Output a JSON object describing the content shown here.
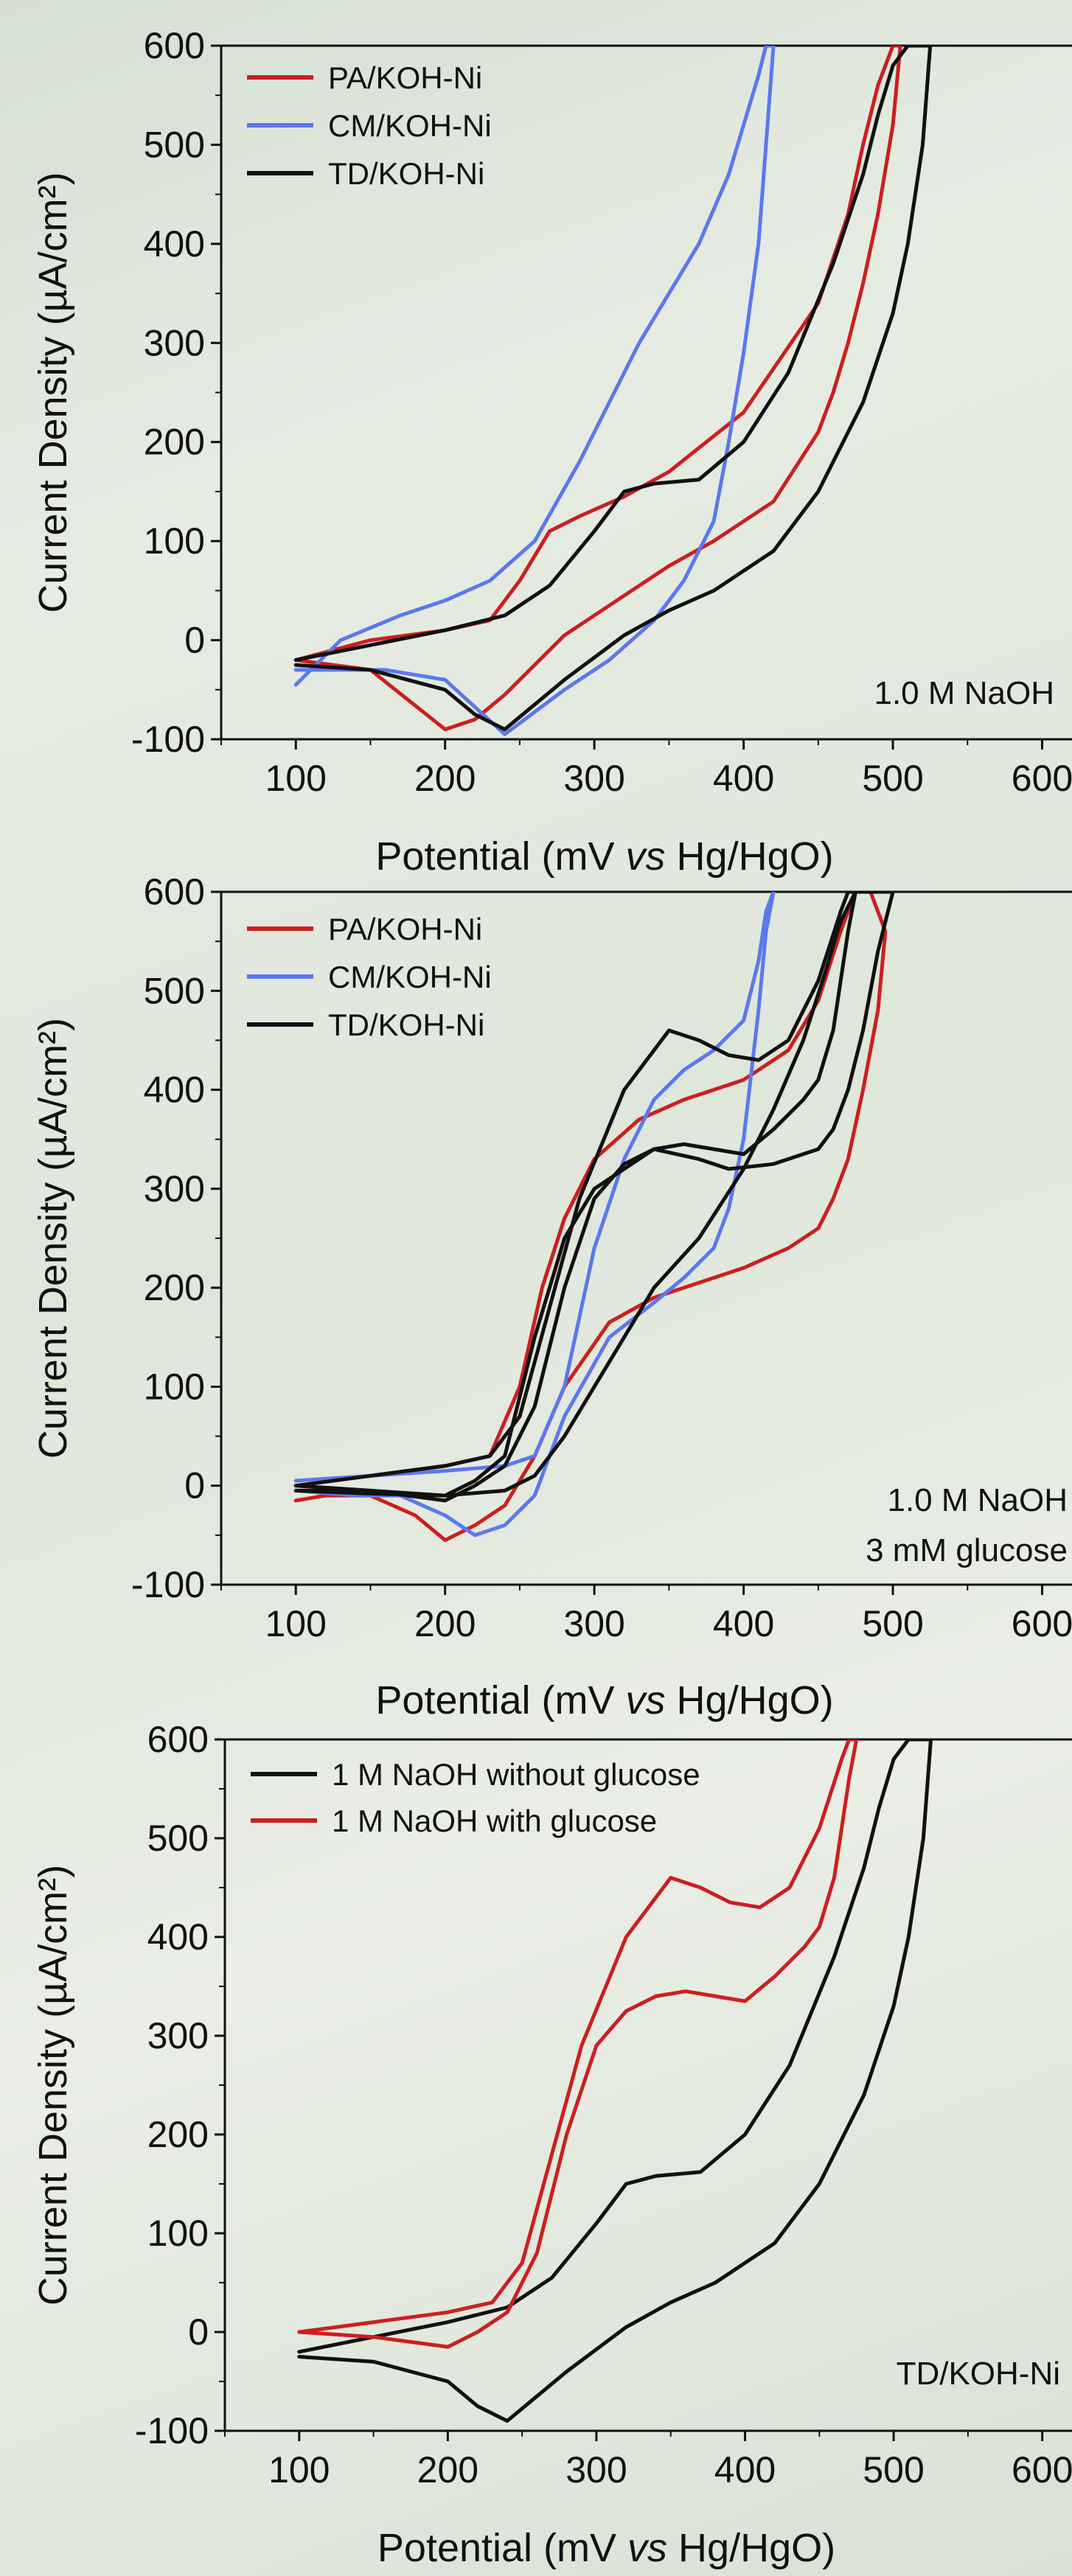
{
  "colors": {
    "red": "#cc1f1f",
    "blue": "#5b78ee",
    "black": "#111111"
  },
  "chart_data": [
    {
      "type": "line",
      "title": "",
      "xlabel_pre": "Potential (mV ",
      "xlabel_italic": "vs",
      "xlabel_post": " Hg/HgO)",
      "ylabel": "Current Density (µA/cm²)",
      "xlim": [
        50,
        620
      ],
      "ylim": [
        -100,
        600
      ],
      "xticks": [
        100,
        200,
        300,
        400,
        500,
        600
      ],
      "yticks": [
        -100,
        0,
        100,
        200,
        300,
        400,
        500,
        600
      ],
      "legend_position": "top-left",
      "annotations": [
        "1.0 M NaOH"
      ],
      "series": [
        {
          "name": "PA/KOH-Ni",
          "color_key": "red",
          "x": [
            100,
            150,
            200,
            230,
            250,
            270,
            290,
            320,
            350,
            400,
            450,
            470,
            480,
            490,
            500,
            505,
            500,
            490,
            480,
            470,
            460,
            450,
            420,
            380,
            350,
            320,
            280,
            240,
            220,
            200,
            150,
            100
          ],
          "y": [
            -20,
            0,
            10,
            20,
            60,
            110,
            125,
            145,
            170,
            230,
            340,
            430,
            500,
            560,
            600,
            600,
            520,
            430,
            360,
            300,
            250,
            210,
            140,
            100,
            75,
            45,
            5,
            -55,
            -80,
            -90,
            -30,
            -20
          ]
        },
        {
          "name": "CM/KOH-Ni",
          "color_key": "blue",
          "x": [
            100,
            130,
            170,
            200,
            230,
            260,
            290,
            310,
            330,
            350,
            370,
            390,
            400,
            410,
            415,
            420,
            410,
            400,
            390,
            380,
            360,
            340,
            310,
            280,
            240,
            200,
            160,
            130,
            100
          ],
          "y": [
            -45,
            0,
            25,
            40,
            60,
            100,
            180,
            240,
            300,
            350,
            400,
            470,
            520,
            570,
            600,
            600,
            400,
            290,
            200,
            120,
            60,
            20,
            -20,
            -50,
            -95,
            -40,
            -30,
            -30,
            -30
          ]
        },
        {
          "name": "TD/KOH-Ni",
          "color_key": "black",
          "x": [
            100,
            150,
            200,
            240,
            270,
            300,
            320,
            340,
            370,
            400,
            430,
            460,
            480,
            490,
            500,
            510,
            520,
            525,
            520,
            510,
            500,
            480,
            450,
            420,
            380,
            350,
            320,
            280,
            240,
            220,
            200,
            150,
            100
          ],
          "y": [
            -20,
            -5,
            10,
            25,
            55,
            110,
            150,
            158,
            162,
            200,
            270,
            380,
            470,
            530,
            580,
            600,
            600,
            600,
            500,
            400,
            330,
            240,
            150,
            90,
            50,
            30,
            5,
            -40,
            -90,
            -75,
            -50,
            -30,
            -25
          ]
        }
      ]
    },
    {
      "type": "line",
      "title": "",
      "xlabel_pre": "Potential (mV ",
      "xlabel_italic": "vs",
      "xlabel_post": " Hg/HgO)",
      "ylabel": "Current Density (µA/cm²)",
      "xlim": [
        50,
        620
      ],
      "ylim": [
        -100,
        600
      ],
      "xticks": [
        100,
        200,
        300,
        400,
        500,
        600
      ],
      "yticks": [
        -100,
        0,
        100,
        200,
        300,
        400,
        500,
        600
      ],
      "legend_position": "top-left",
      "annotations": [
        "1.0 M NaOH",
        "3 mM glucose"
      ],
      "series": [
        {
          "name": "PA/KOH-Ni",
          "color_key": "red",
          "x": [
            100,
            150,
            200,
            230,
            250,
            265,
            280,
            300,
            330,
            360,
            400,
            430,
            450,
            465,
            475,
            480,
            485,
            490,
            495,
            490,
            480,
            470,
            460,
            450,
            430,
            400,
            370,
            340,
            310,
            280,
            260,
            240,
            220,
            200,
            180,
            150,
            120,
            100
          ],
          "y": [
            0,
            10,
            20,
            30,
            100,
            200,
            270,
            330,
            370,
            390,
            410,
            440,
            490,
            560,
            600,
            600,
            600,
            580,
            560,
            480,
            400,
            330,
            290,
            260,
            240,
            220,
            205,
            190,
            165,
            100,
            30,
            -20,
            -40,
            -55,
            -30,
            -10,
            -10,
            -15
          ]
        },
        {
          "name": "CM/KOH-Ni",
          "color_key": "blue",
          "x": [
            100,
            150,
            200,
            240,
            260,
            280,
            300,
            320,
            340,
            360,
            380,
            400,
            410,
            415,
            420,
            415,
            410,
            400,
            390,
            380,
            360,
            340,
            310,
            280,
            260,
            240,
            220,
            200,
            170,
            140,
            100
          ],
          "y": [
            5,
            10,
            15,
            20,
            30,
            100,
            240,
            330,
            390,
            420,
            440,
            470,
            530,
            580,
            600,
            560,
            480,
            350,
            280,
            240,
            210,
            185,
            150,
            70,
            -10,
            -40,
            -50,
            -30,
            -10,
            -10,
            -5
          ]
        },
        {
          "name": "TD/KOH-Ni",
          "color_key": "black",
          "x": [
            100,
            150,
            200,
            230,
            250,
            270,
            290,
            320,
            350,
            370,
            390,
            410,
            430,
            450,
            465,
            470,
            475,
            470,
            460,
            450,
            440,
            420,
            400,
            380,
            360,
            340,
            320,
            300,
            280,
            260,
            240,
            220,
            200,
            150,
            100
          ],
          "y": [
            0,
            10,
            20,
            30,
            70,
            180,
            290,
            400,
            460,
            450,
            435,
            430,
            450,
            510,
            580,
            600,
            600,
            560,
            460,
            410,
            390,
            360,
            335,
            340,
            345,
            340,
            325,
            290,
            200,
            80,
            20,
            0,
            -15,
            -5,
            0
          ]
        },
        {
          "name": "TD/KOH-Ni",
          "color_key": "black",
          "x": [
            100,
            150,
            200,
            240,
            260,
            280,
            300,
            320,
            340,
            370,
            400,
            420,
            440,
            455,
            465,
            475,
            485,
            495,
            500,
            490,
            480,
            470,
            460,
            450,
            420,
            390,
            370,
            340,
            310,
            300,
            280,
            260,
            240,
            220,
            200,
            150,
            100
          ],
          "y": [
            -5,
            -8,
            -10,
            -5,
            10,
            50,
            100,
            150,
            200,
            250,
            320,
            380,
            450,
            520,
            570,
            600,
            600,
            600,
            600,
            540,
            460,
            400,
            360,
            340,
            325,
            320,
            330,
            340,
            310,
            300,
            250,
            150,
            30,
            5,
            -10,
            -5,
            -5
          ]
        }
      ]
    },
    {
      "type": "line",
      "title": "",
      "xlabel_pre": "Potential (mV ",
      "xlabel_italic": "vs",
      "xlabel_post": " Hg/HgO)",
      "ylabel": "Current Density (µA/cm²)",
      "xlim": [
        50,
        620
      ],
      "ylim": [
        -100,
        600
      ],
      "xticks": [
        100,
        200,
        300,
        400,
        500,
        600
      ],
      "yticks": [
        -100,
        0,
        100,
        200,
        300,
        400,
        500,
        600
      ],
      "legend_position": "top-left",
      "annotations": [
        "TD/KOH-Ni"
      ],
      "series": [
        {
          "name": "1 M NaOH without glucose",
          "color_key": "black",
          "x": [
            100,
            150,
            200,
            240,
            270,
            300,
            320,
            340,
            370,
            400,
            430,
            460,
            480,
            490,
            500,
            510,
            520,
            525,
            520,
            510,
            500,
            480,
            450,
            420,
            380,
            350,
            320,
            280,
            240,
            220,
            200,
            150,
            100
          ],
          "y": [
            -20,
            -5,
            10,
            25,
            55,
            110,
            150,
            158,
            162,
            200,
            270,
            380,
            470,
            530,
            580,
            600,
            600,
            600,
            500,
            400,
            330,
            240,
            150,
            90,
            50,
            30,
            5,
            -40,
            -90,
            -75,
            -50,
            -30,
            -25
          ]
        },
        {
          "name": "1 M NaOH with glucose",
          "color_key": "red",
          "x": [
            100,
            150,
            200,
            230,
            250,
            270,
            290,
            320,
            350,
            370,
            390,
            410,
            430,
            450,
            465,
            470,
            475,
            470,
            460,
            450,
            440,
            420,
            400,
            380,
            360,
            340,
            320,
            300,
            280,
            260,
            240,
            220,
            200,
            150,
            100
          ],
          "y": [
            0,
            10,
            20,
            30,
            70,
            180,
            290,
            400,
            460,
            450,
            435,
            430,
            450,
            510,
            580,
            600,
            600,
            560,
            460,
            410,
            390,
            360,
            335,
            340,
            345,
            340,
            325,
            290,
            200,
            80,
            20,
            0,
            -15,
            -5,
            0
          ]
        }
      ]
    }
  ]
}
